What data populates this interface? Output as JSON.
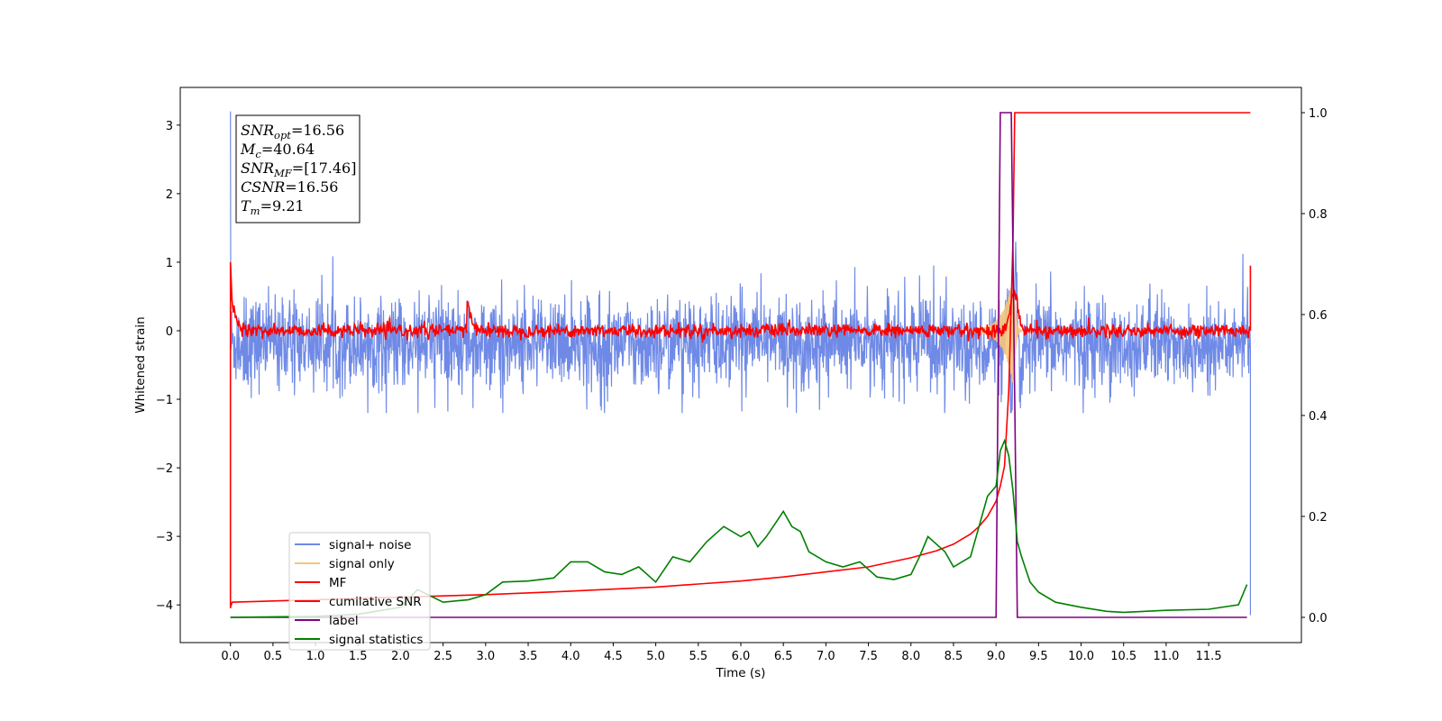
{
  "chart_data": {
    "type": "line",
    "xlabel": "Time (s)",
    "ylabel_left": "Whitened strain",
    "ylabel_right": "",
    "xlim": [
      -0.59,
      12.59
    ],
    "ylim_left": [
      -4.55,
      3.55
    ],
    "ylim_right": [
      -0.05,
      1.05
    ],
    "x_ticks": [
      "0.0",
      "0.5",
      "1.0",
      "1.5",
      "2.0",
      "2.5",
      "3.0",
      "3.5",
      "4.0",
      "4.5",
      "5.0",
      "5.5",
      "6.0",
      "6.5",
      "7.0",
      "7.5",
      "8.0",
      "8.5",
      "9.0",
      "9.5",
      "10.0",
      "10.5",
      "11.0",
      "11.5"
    ],
    "y_ticks_left": [
      "3",
      "2",
      "1",
      "0",
      "−1",
      "−2",
      "−3",
      "−4"
    ],
    "y_ticks_right": [
      "1.0",
      "0.8",
      "0.6",
      "0.4",
      "0.2",
      "0.0"
    ],
    "grid": false,
    "legend_position": "lower-left",
    "annotation": {
      "lines": [
        {
          "base": "SNR",
          "sub": "opt",
          "value": "=16.56"
        },
        {
          "base": "M",
          "sub": "c",
          "value": "=40.64"
        },
        {
          "base": "SNR",
          "sub": "MF",
          "value": "=[17.46]"
        },
        {
          "base": "CSNR",
          "sub": "",
          "value": "=16.56"
        },
        {
          "base": "T",
          "sub": "m",
          "value": "=9.21"
        }
      ]
    },
    "series": [
      {
        "name": "signal+ noise",
        "color": "#6f8ae6",
        "axis": "left",
        "description_kind": "noise",
        "noise_amplitude": 0.35,
        "x_range": [
          0.0,
          11.99
        ]
      },
      {
        "name": "signal only",
        "color": "#f5c57a",
        "axis": "left",
        "description_kind": "chirp",
        "merger_time": 9.21
      },
      {
        "name": "MF",
        "color": "#ff0000",
        "axis": "left",
        "description_kind": "matched-filter",
        "noise_amplitude": 0.05
      },
      {
        "name": "cumilative SNR",
        "color": "#ff0000",
        "axis": "right",
        "x": [
          0.0,
          0.02,
          1.0,
          2.0,
          3.0,
          4.0,
          5.0,
          5.5,
          6.0,
          6.5,
          7.0,
          7.5,
          8.0,
          8.3,
          8.5,
          8.7,
          8.8,
          8.9,
          9.0,
          9.05,
          9.1,
          9.15,
          9.2,
          9.22,
          11.99
        ],
        "y": [
          0.02,
          0.03,
          0.035,
          0.04,
          0.045,
          0.052,
          0.06,
          0.066,
          0.072,
          0.08,
          0.09,
          0.1,
          0.118,
          0.132,
          0.145,
          0.165,
          0.18,
          0.2,
          0.23,
          0.26,
          0.3,
          0.45,
          0.75,
          1.0,
          1.0
        ]
      },
      {
        "name": "label",
        "color": "#800080",
        "axis": "right",
        "x": [
          0.0,
          9.0,
          9.05,
          9.18,
          9.25,
          11.95
        ],
        "y": [
          0.0,
          0.0,
          1.0,
          1.0,
          0.0,
          0.0
        ]
      },
      {
        "name": "signal statistics",
        "color": "#008000",
        "axis": "right",
        "x": [
          0.0,
          0.5,
          1.0,
          1.5,
          2.0,
          2.2,
          2.5,
          2.8,
          3.0,
          3.2,
          3.5,
          3.8,
          4.0,
          4.2,
          4.4,
          4.6,
          4.8,
          5.0,
          5.2,
          5.4,
          5.6,
          5.8,
          6.0,
          6.1,
          6.2,
          6.3,
          6.4,
          6.5,
          6.6,
          6.7,
          6.8,
          7.0,
          7.2,
          7.4,
          7.6,
          7.8,
          8.0,
          8.1,
          8.2,
          8.4,
          8.5,
          8.7,
          8.8,
          8.9,
          9.0,
          9.05,
          9.1,
          9.15,
          9.2,
          9.25,
          9.3,
          9.4,
          9.5,
          9.7,
          10.0,
          10.3,
          10.5,
          11.0,
          11.5,
          11.85,
          11.95
        ],
        "y": [
          0.0,
          0.001,
          0.002,
          0.006,
          0.02,
          0.055,
          0.03,
          0.035,
          0.045,
          0.07,
          0.072,
          0.078,
          0.11,
          0.11,
          0.09,
          0.085,
          0.1,
          0.07,
          0.12,
          0.11,
          0.15,
          0.18,
          0.16,
          0.17,
          0.14,
          0.16,
          0.185,
          0.21,
          0.18,
          0.17,
          0.13,
          0.11,
          0.1,
          0.11,
          0.08,
          0.075,
          0.085,
          0.12,
          0.16,
          0.13,
          0.1,
          0.12,
          0.18,
          0.24,
          0.26,
          0.33,
          0.35,
          0.32,
          0.25,
          0.15,
          0.12,
          0.07,
          0.05,
          0.03,
          0.02,
          0.012,
          0.01,
          0.014,
          0.016,
          0.025,
          0.065
        ]
      }
    ]
  }
}
